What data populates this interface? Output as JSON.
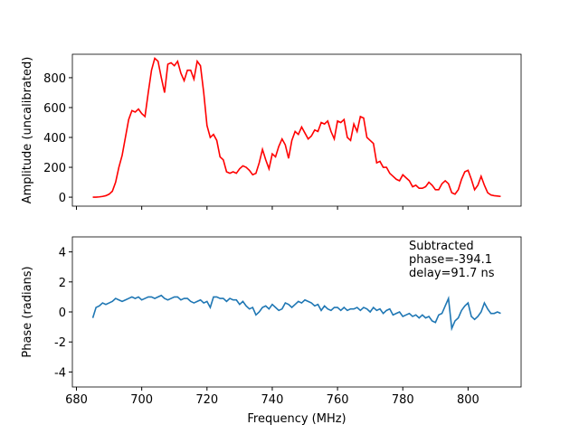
{
  "chart_data": [
    {
      "type": "line",
      "ylabel": "Amplitude (uncalibrated)",
      "x": [
        685,
        686,
        687,
        688,
        689,
        690,
        691,
        692,
        693,
        694,
        695,
        696,
        697,
        698,
        699,
        700,
        701,
        702,
        703,
        704,
        705,
        706,
        707,
        708,
        709,
        710,
        711,
        712,
        713,
        714,
        715,
        716,
        717,
        718,
        719,
        720,
        721,
        722,
        723,
        724,
        725,
        726,
        727,
        728,
        729,
        730,
        731,
        732,
        733,
        734,
        735,
        736,
        737,
        738,
        739,
        740,
        741,
        742,
        743,
        744,
        745,
        746,
        747,
        748,
        749,
        750,
        751,
        752,
        753,
        754,
        755,
        756,
        757,
        758,
        759,
        760,
        761,
        762,
        763,
        764,
        765,
        766,
        767,
        768,
        769,
        770,
        771,
        772,
        773,
        774,
        775,
        776,
        777,
        778,
        779,
        780,
        781,
        782,
        783,
        784,
        785,
        786,
        787,
        788,
        789,
        790,
        791,
        792,
        793,
        794,
        795,
        796,
        797,
        798,
        799,
        800,
        801,
        802,
        803,
        804,
        805,
        806,
        807,
        808,
        809,
        810
      ],
      "series": [
        {
          "color": "#ff0000",
          "values": [
            0,
            0,
            2,
            5,
            10,
            20,
            40,
            100,
            200,
            280,
            400,
            520,
            580,
            570,
            590,
            560,
            540,
            700,
            850,
            930,
            910,
            800,
            700,
            890,
            900,
            880,
            910,
            830,
            780,
            850,
            850,
            790,
            910,
            880,
            700,
            480,
            400,
            420,
            380,
            270,
            250,
            170,
            160,
            170,
            160,
            190,
            210,
            200,
            180,
            150,
            160,
            230,
            320,
            250,
            190,
            290,
            270,
            340,
            390,
            350,
            260,
            380,
            440,
            420,
            470,
            430,
            390,
            410,
            450,
            440,
            500,
            490,
            510,
            440,
            390,
            510,
            500,
            520,
            400,
            380,
            490,
            440,
            540,
            530,
            400,
            380,
            360,
            230,
            240,
            200,
            200,
            160,
            140,
            120,
            110,
            150,
            130,
            110,
            70,
            80,
            60,
            60,
            70,
            100,
            80,
            50,
            50,
            90,
            110,
            90,
            30,
            20,
            50,
            120,
            170,
            180,
            120,
            50,
            80,
            140,
            80,
            30,
            15,
            10,
            8,
            5
          ]
        }
      ],
      "xlim": [
        678.75,
        816.25
      ],
      "ylim": [
        -60,
        957
      ],
      "yticks": [
        0,
        200,
        400,
        600,
        800
      ]
    },
    {
      "type": "line",
      "xlabel": "Frequency (MHz)",
      "ylabel": "Phase (radians)",
      "x": [
        685,
        686,
        687,
        688,
        689,
        690,
        691,
        692,
        693,
        694,
        695,
        696,
        697,
        698,
        699,
        700,
        701,
        702,
        703,
        704,
        705,
        706,
        707,
        708,
        709,
        710,
        711,
        712,
        713,
        714,
        715,
        716,
        717,
        718,
        719,
        720,
        721,
        722,
        723,
        724,
        725,
        726,
        727,
        728,
        729,
        730,
        731,
        732,
        733,
        734,
        735,
        736,
        737,
        738,
        739,
        740,
        741,
        742,
        743,
        744,
        745,
        746,
        747,
        748,
        749,
        750,
        751,
        752,
        753,
        754,
        755,
        756,
        757,
        758,
        759,
        760,
        761,
        762,
        763,
        764,
        765,
        766,
        767,
        768,
        769,
        770,
        771,
        772,
        773,
        774,
        775,
        776,
        777,
        778,
        779,
        780,
        781,
        782,
        783,
        784,
        785,
        786,
        787,
        788,
        789,
        790,
        791,
        792,
        793,
        794,
        795,
        796,
        797,
        798,
        799,
        800,
        801,
        802,
        803,
        804,
        805,
        806,
        807,
        808,
        809,
        810
      ],
      "series": [
        {
          "color": "#1f77b4",
          "values": [
            -0.4,
            0.3,
            0.4,
            0.6,
            0.5,
            0.6,
            0.7,
            0.9,
            0.8,
            0.7,
            0.8,
            0.9,
            1.0,
            0.9,
            1.0,
            0.8,
            0.9,
            1.0,
            1.0,
            0.9,
            1.0,
            1.1,
            0.9,
            0.8,
            0.9,
            1.0,
            1.0,
            0.8,
            0.9,
            0.9,
            0.7,
            0.6,
            0.7,
            0.8,
            0.6,
            0.7,
            0.3,
            1.0,
            1.0,
            0.9,
            0.9,
            0.7,
            0.9,
            0.8,
            0.8,
            0.5,
            0.7,
            0.4,
            0.2,
            0.3,
            -0.2,
            0.0,
            0.3,
            0.4,
            0.2,
            0.5,
            0.3,
            0.1,
            0.2,
            0.6,
            0.5,
            0.3,
            0.5,
            0.7,
            0.6,
            0.8,
            0.7,
            0.6,
            0.4,
            0.5,
            0.1,
            0.4,
            0.2,
            0.1,
            0.3,
            0.3,
            0.1,
            0.3,
            0.1,
            0.2,
            0.2,
            0.3,
            0.1,
            0.3,
            0.2,
            0.0,
            0.3,
            0.1,
            0.2,
            -0.1,
            0.1,
            0.2,
            -0.2,
            -0.1,
            0.0,
            -0.3,
            -0.2,
            -0.1,
            -0.3,
            -0.2,
            -0.4,
            -0.2,
            -0.4,
            -0.3,
            -0.6,
            -0.7,
            -0.2,
            -0.1,
            0.4,
            0.9,
            -1.1,
            -0.6,
            -0.4,
            0.1,
            0.4,
            0.6,
            -0.3,
            -0.5,
            -0.3,
            0.0,
            0.6,
            0.2,
            -0.1,
            -0.1,
            0.0,
            -0.1
          ]
        }
      ],
      "xlim": [
        678.75,
        816.25
      ],
      "ylim": [
        -5,
        5
      ],
      "yticks": [
        -4,
        -2,
        0,
        2,
        4
      ],
      "xticks": [
        680,
        700,
        720,
        740,
        760,
        780,
        800
      ],
      "annotation": [
        "Subtracted",
        "phase=-394.1",
        "delay=91.7 ns"
      ]
    }
  ]
}
